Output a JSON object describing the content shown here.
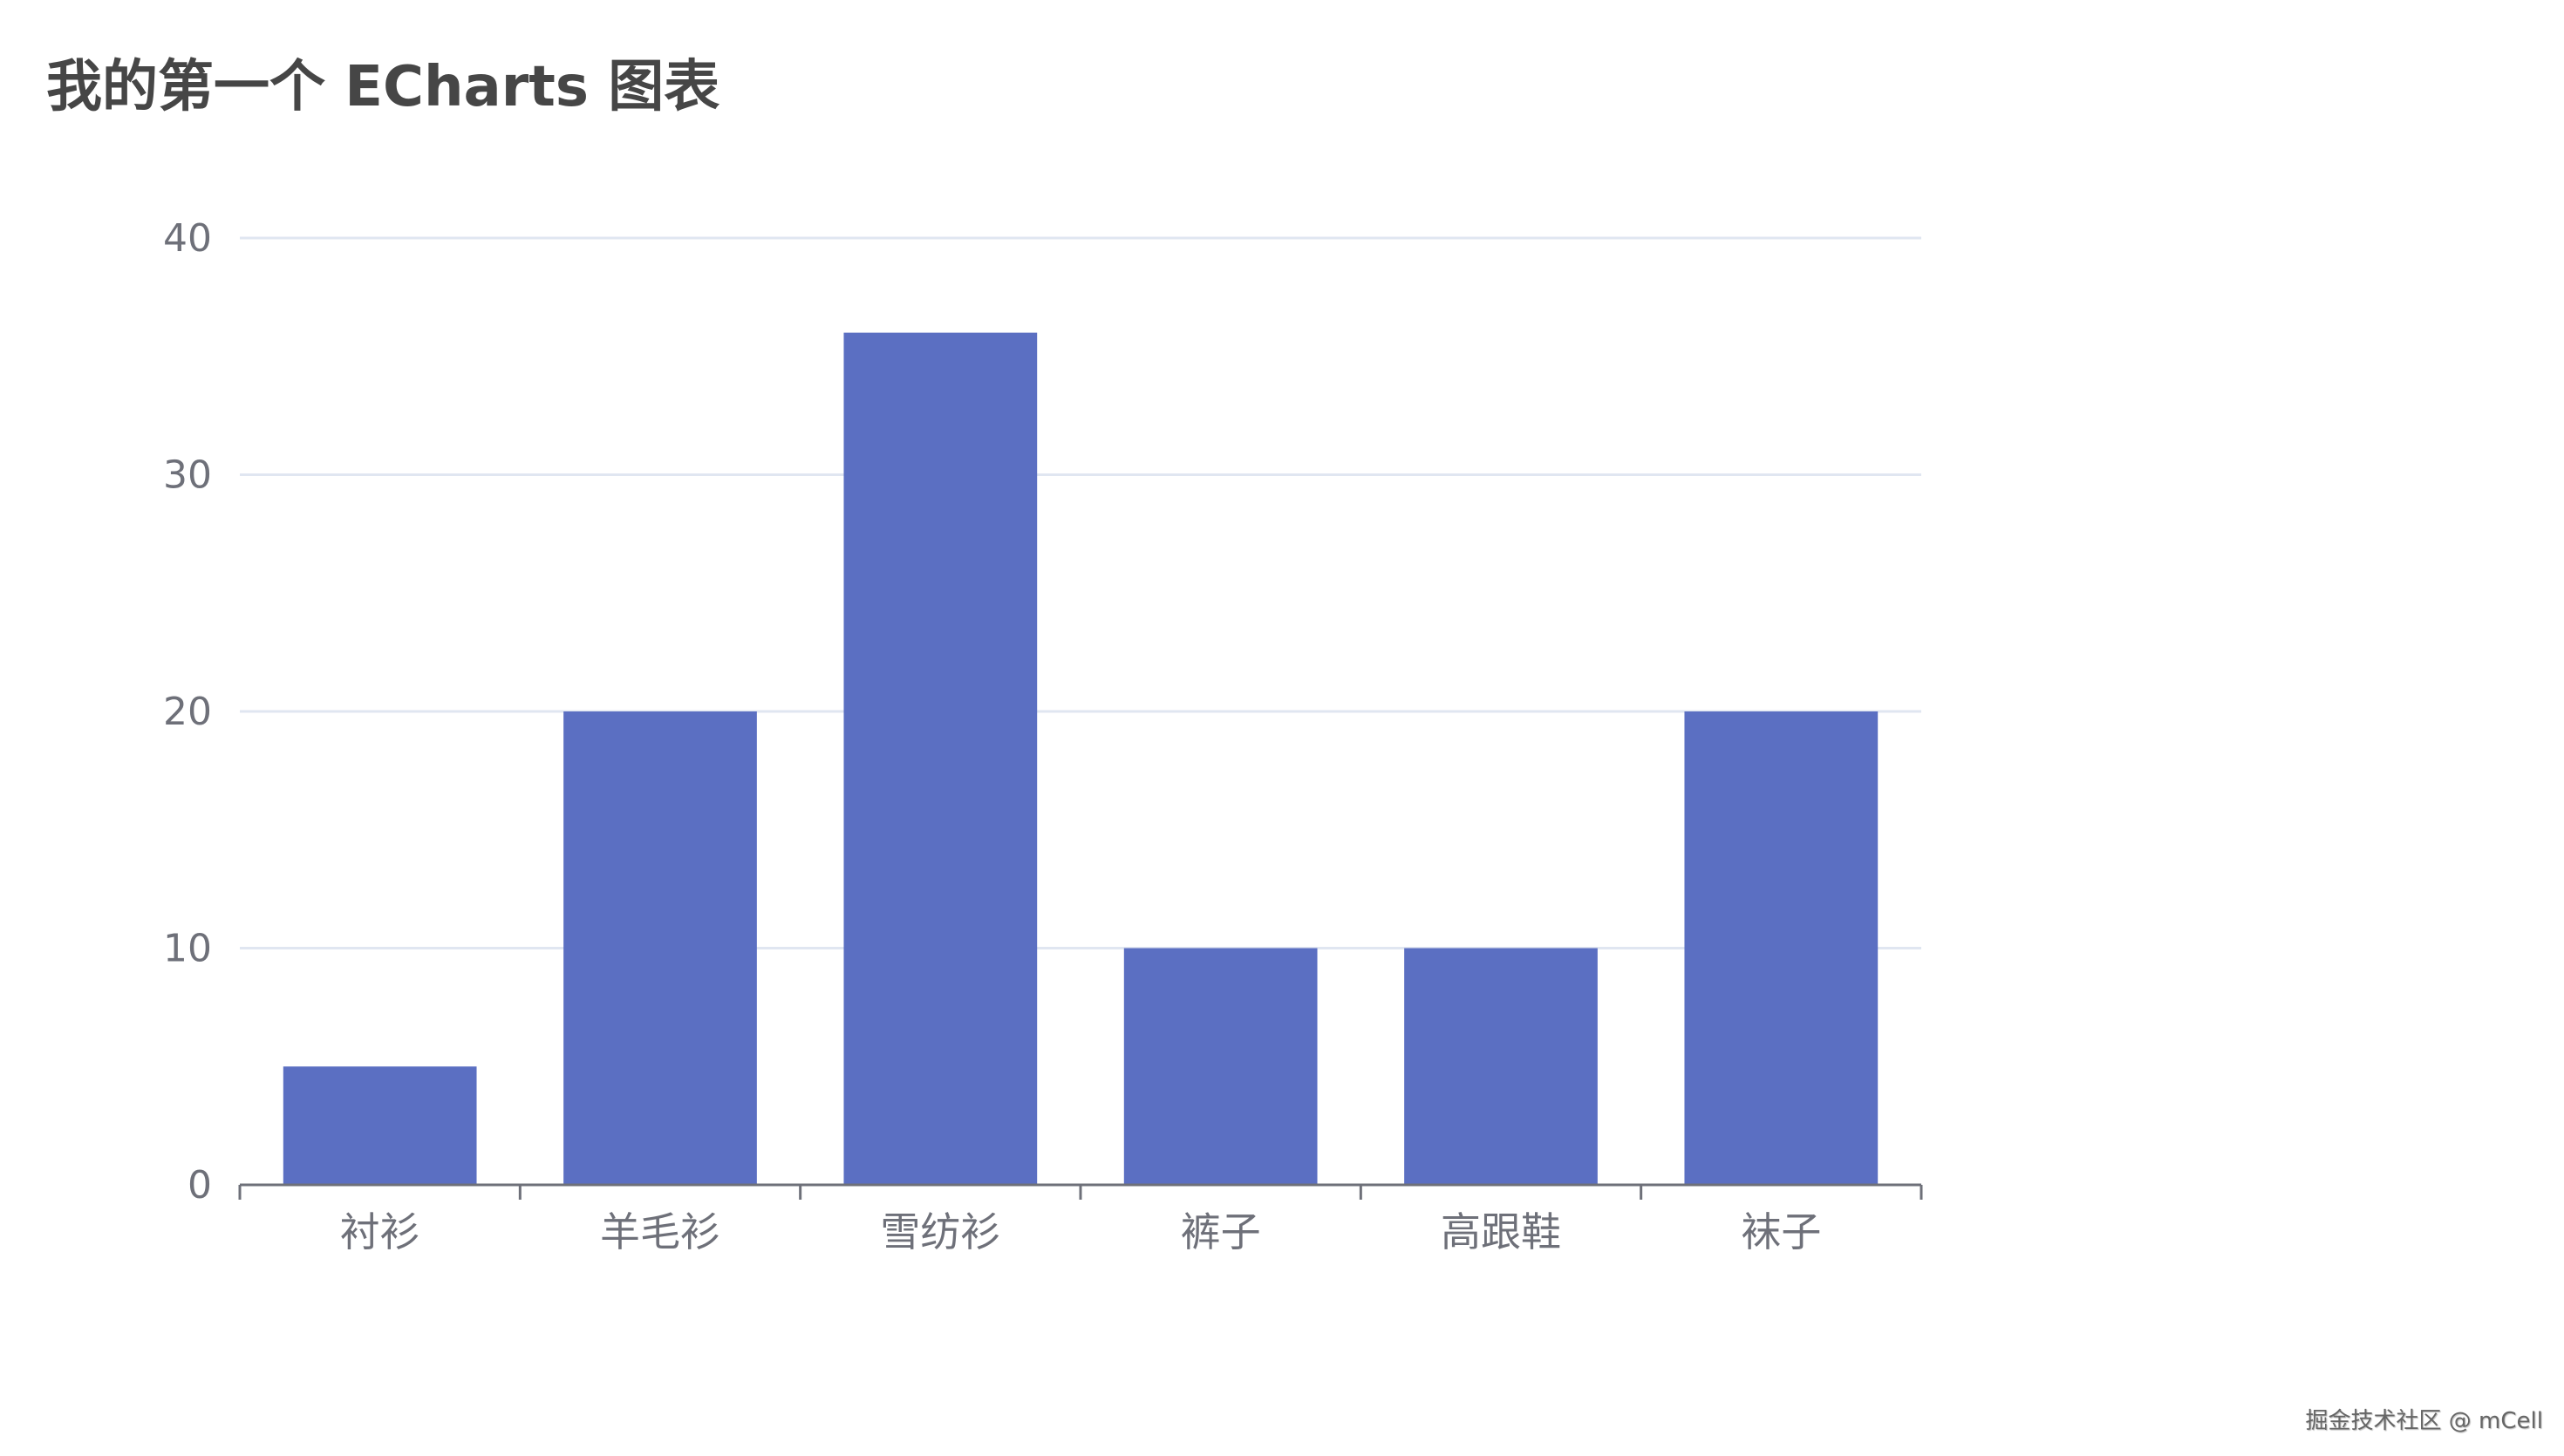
{
  "chart_data": {
    "type": "bar",
    "title": "我的第一个 ECharts 图表",
    "categories": [
      "衬衫",
      "羊毛衫",
      "雪纺衫",
      "裤子",
      "高跟鞋",
      "袜子"
    ],
    "values": [
      5,
      20,
      36,
      10,
      10,
      20
    ],
    "xlabel": "",
    "ylabel": "",
    "ylim": [
      0,
      40
    ],
    "yticks": [
      0,
      10,
      20,
      30,
      40
    ],
    "grid": true,
    "colors": {
      "bar": "#5B6FC2",
      "grid": "#E0E6F1",
      "axis": "#6E7079",
      "label": "#6E7079"
    }
  },
  "watermark": "掘金技术社区 @ mCell"
}
